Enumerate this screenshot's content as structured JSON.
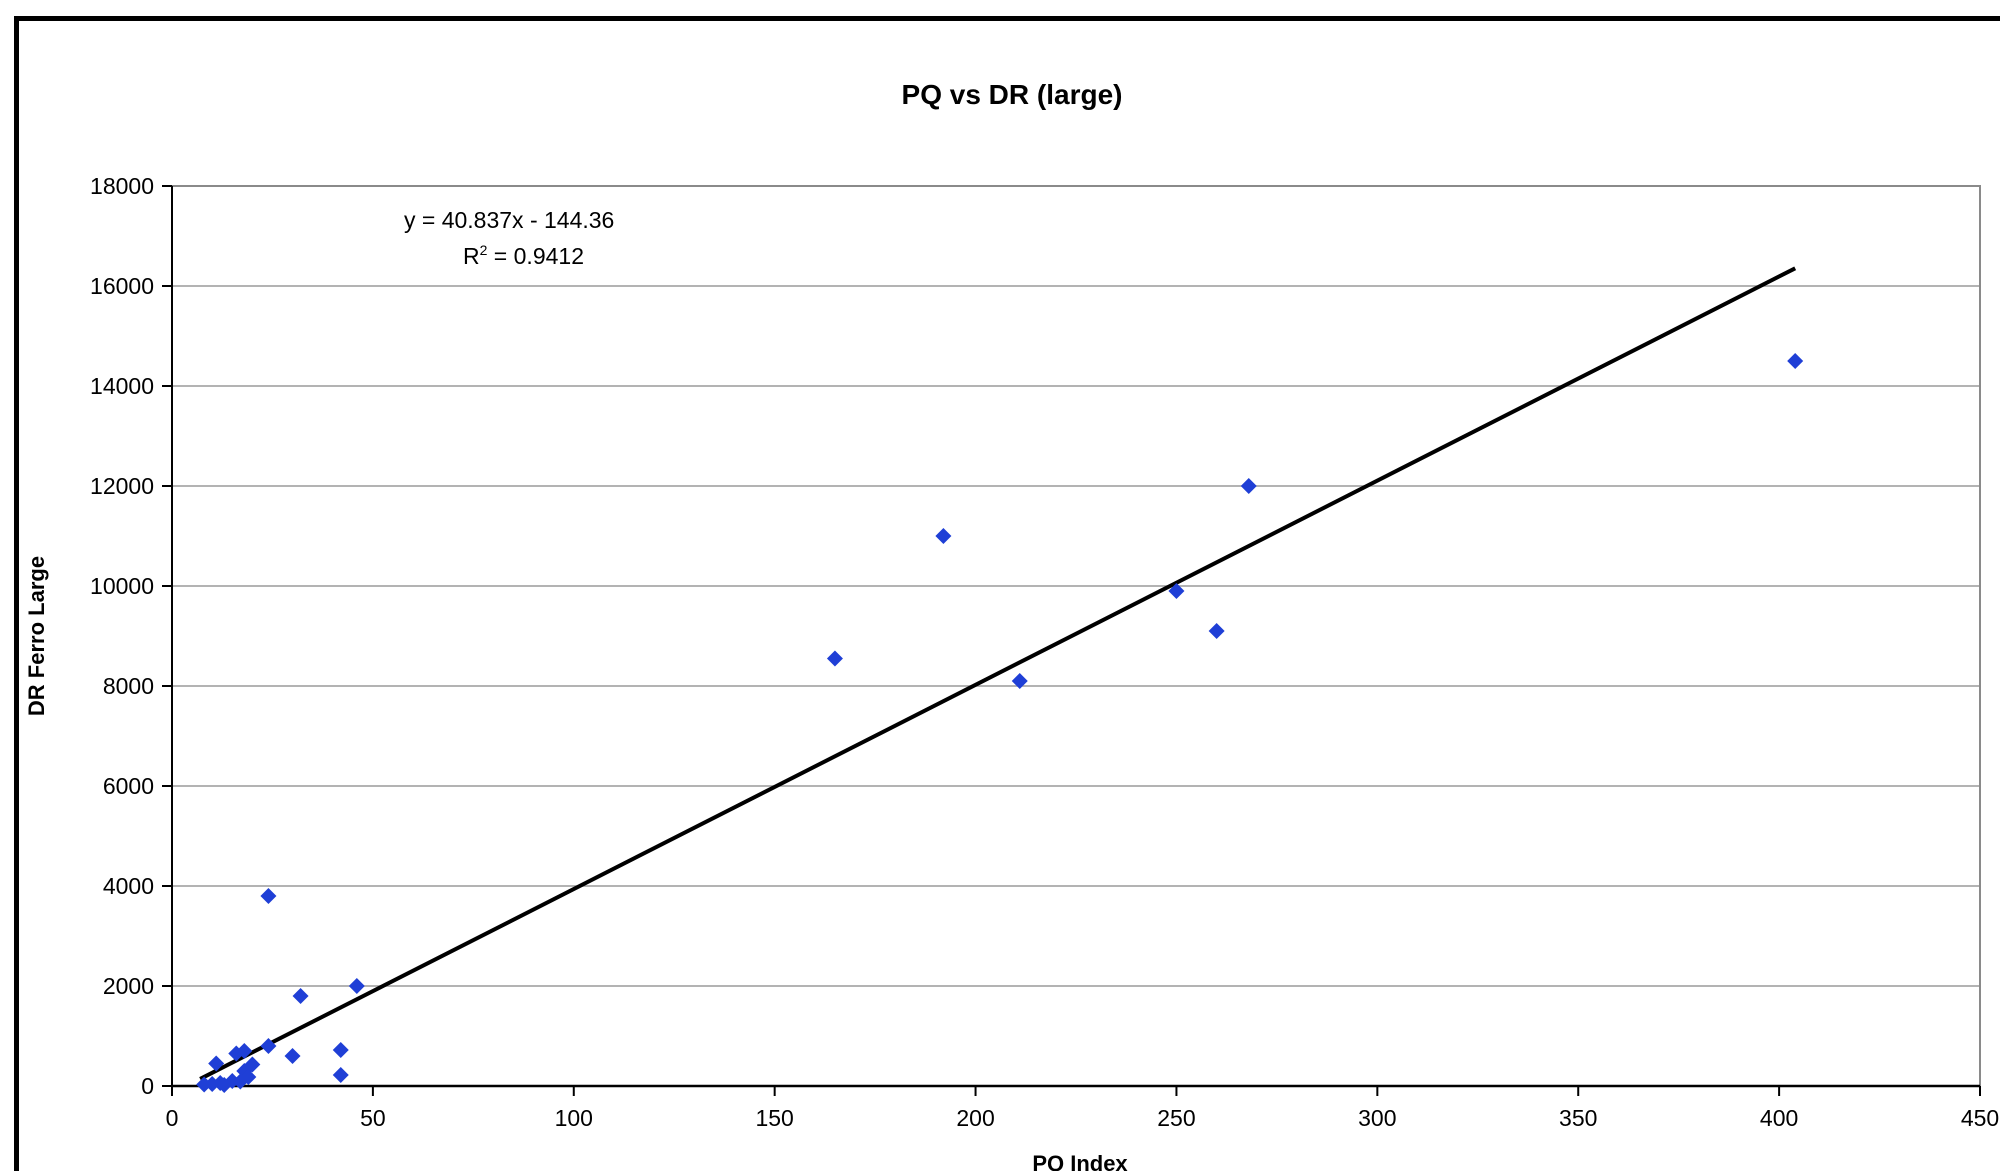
{
  "chart_data": {
    "type": "scatter",
    "title": "PQ vs DR (large)",
    "xlabel": "PQ Index",
    "ylabel": "DR Ferro Large",
    "xlim": [
      0,
      450
    ],
    "ylim": [
      0,
      18000
    ],
    "xticks": [
      0,
      50,
      100,
      150,
      200,
      250,
      300,
      350,
      400,
      450
    ],
    "yticks": [
      0,
      2000,
      4000,
      6000,
      8000,
      10000,
      12000,
      14000,
      16000,
      18000
    ],
    "grid": "horizontal",
    "marker_color": "#1f3fd6",
    "trendline_color": "#000000",
    "points": [
      {
        "x": 404,
        "y": 14500
      },
      {
        "x": 268,
        "y": 12000
      },
      {
        "x": 192,
        "y": 11000
      },
      {
        "x": 250,
        "y": 9900
      },
      {
        "x": 260,
        "y": 9100
      },
      {
        "x": 165,
        "y": 8550
      },
      {
        "x": 211,
        "y": 8100
      },
      {
        "x": 24,
        "y": 3800
      },
      {
        "x": 46,
        "y": 2000
      },
      {
        "x": 32,
        "y": 1800
      },
      {
        "x": 24,
        "y": 800
      },
      {
        "x": 42,
        "y": 720
      },
      {
        "x": 30,
        "y": 600
      },
      {
        "x": 42,
        "y": 220
      },
      {
        "x": 18,
        "y": 700
      },
      {
        "x": 16,
        "y": 650
      },
      {
        "x": 20,
        "y": 430
      },
      {
        "x": 11,
        "y": 450
      },
      {
        "x": 18,
        "y": 300
      },
      {
        "x": 19,
        "y": 180
      },
      {
        "x": 15,
        "y": 100
      },
      {
        "x": 12,
        "y": 60
      },
      {
        "x": 10,
        "y": 40
      },
      {
        "x": 8,
        "y": 30
      },
      {
        "x": 13,
        "y": 20
      },
      {
        "x": 17,
        "y": 90
      }
    ],
    "trendline": {
      "slope": 40.837,
      "intercept": -144.36,
      "x_range": [
        7,
        404
      ],
      "equation": "y = 40.837x - 144.36",
      "r2_label": "R",
      "r2_sup": "2",
      "r2_value": " = 0.9412"
    }
  }
}
